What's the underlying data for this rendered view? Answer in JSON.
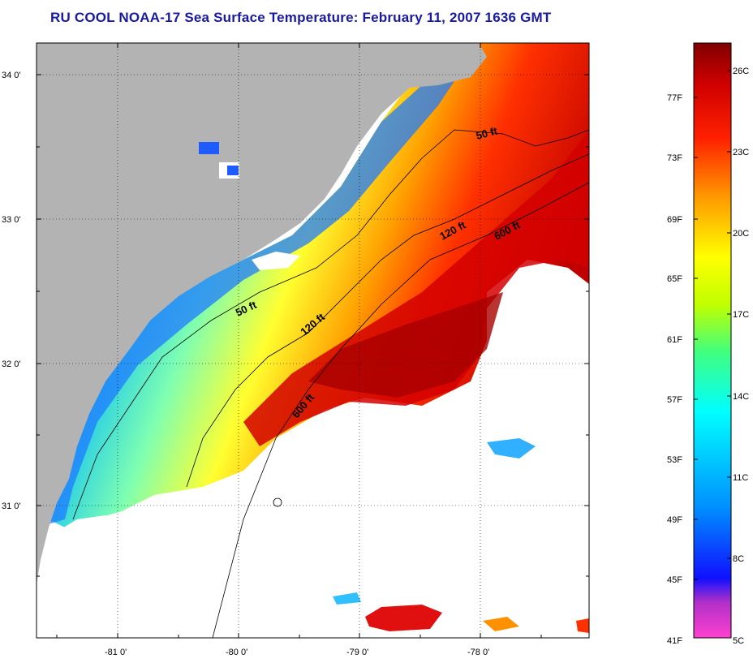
{
  "title": "RU COOL  NOAA-17  Sea Surface Temperature:  February 11, 2007 1636 GMT",
  "map": {
    "lat_ticks": [
      "34 0'",
      "33 0'",
      "32 0'",
      "31 0'"
    ],
    "lon_ticks": [
      "-81 0'",
      "-80 0'",
      "-79 0'",
      "-78 0'"
    ],
    "contour_labels": [
      "50 ft",
      "120 ft",
      "600 ft",
      "50 ft",
      "120 ft",
      "600 ft"
    ],
    "land_color": "#b3b3b3",
    "cloud_color": "#ffffff"
  },
  "colorbar": {
    "fahrenheit_labels": [
      "77F",
      "73F",
      "69F",
      "65F",
      "61F",
      "57F",
      "53F",
      "49F",
      "45F",
      "41F"
    ],
    "celsius_labels": [
      "26C",
      "23C",
      "20C",
      "17C",
      "14C",
      "11C",
      "8C",
      "5C"
    ],
    "colors": [
      "#ff3fd0",
      "#a020c0",
      "#0000ff",
      "#00a0ff",
      "#00ffff",
      "#00ff80",
      "#ffff00",
      "#ff9000",
      "#ff0000",
      "#8b0000"
    ]
  }
}
